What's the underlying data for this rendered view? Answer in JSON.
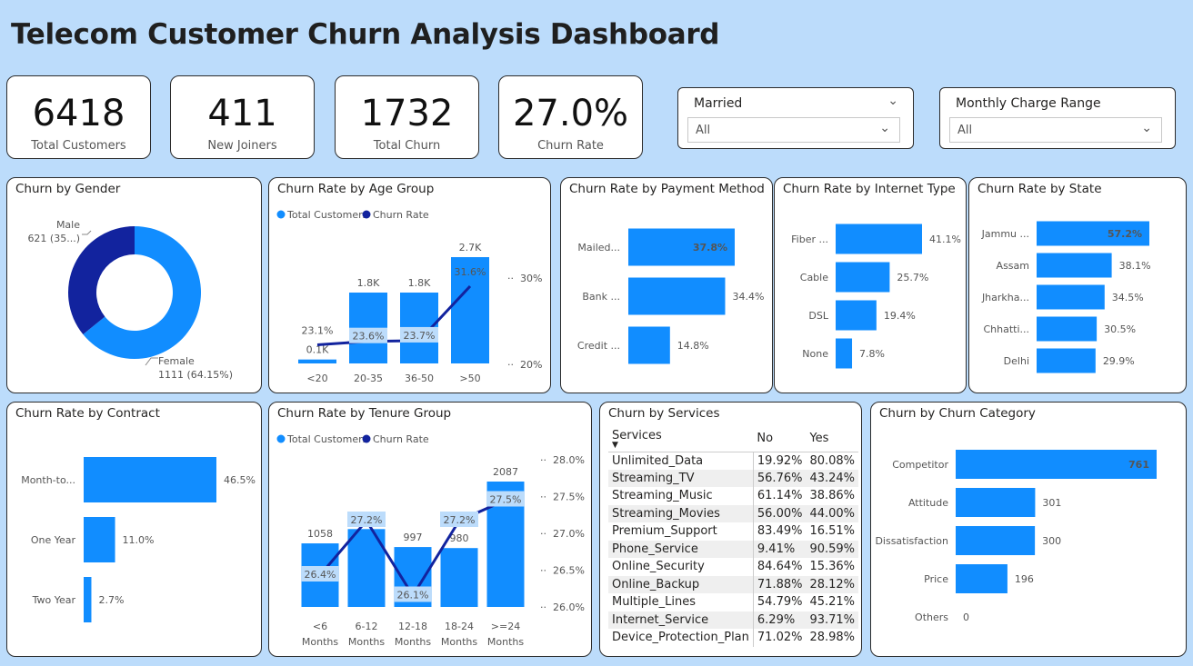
{
  "title": "Telecom Customer Churn Analysis Dashboard",
  "kpis": [
    {
      "value": "6418",
      "label": "Total Customers"
    },
    {
      "value": "411",
      "label": "New Joiners"
    },
    {
      "value": "1732",
      "label": "Total Churn"
    },
    {
      "value": "27.0%",
      "label": "Churn Rate"
    }
  ],
  "slicers": [
    {
      "title": "Married",
      "value": "All"
    },
    {
      "title": "Monthly Charge Range",
      "value": "All"
    }
  ],
  "panels": {
    "gender": "Churn by Gender",
    "age": "Churn Rate by Age Group",
    "payment": "Churn Rate by Payment Method",
    "internet": "Churn Rate by Internet Type",
    "state": "Churn Rate by State",
    "contract": "Churn Rate by Contract",
    "tenure": "Churn Rate by Tenure Group",
    "services": "Churn by Services",
    "category": "Churn by Churn Category"
  },
  "legend": {
    "total": "Total Customers",
    "rate": "Churn Rate"
  },
  "services_table": {
    "headers": [
      "Services",
      "No",
      "Yes"
    ],
    "rows": [
      [
        "Unlimited_Data",
        "19.92%",
        "80.08%"
      ],
      [
        "Streaming_TV",
        "56.76%",
        "43.24%"
      ],
      [
        "Streaming_Music",
        "61.14%",
        "38.86%"
      ],
      [
        "Streaming_Movies",
        "56.00%",
        "44.00%"
      ],
      [
        "Premium_Support",
        "83.49%",
        "16.51%"
      ],
      [
        "Phone_Service",
        "9.41%",
        "90.59%"
      ],
      [
        "Online_Security",
        "84.64%",
        "15.36%"
      ],
      [
        "Online_Backup",
        "71.88%",
        "28.12%"
      ],
      [
        "Multiple_Lines",
        "54.79%",
        "45.21%"
      ],
      [
        "Internet_Service",
        "6.29%",
        "93.71%"
      ],
      [
        "Device_Protection_Plan",
        "71.02%",
        "28.98%"
      ]
    ]
  },
  "colors": {
    "primary": "#118dff",
    "dark": "#12239e",
    "highlight": "#bcdcfb"
  },
  "chart_data": [
    {
      "id": "gender",
      "type": "pie",
      "categories": [
        "Female",
        "Male"
      ],
      "values": [
        1111,
        621
      ],
      "labels": [
        "Female\n1111 (64.15%)",
        "Male\n621 (35...)"
      ]
    },
    {
      "id": "age",
      "type": "bar",
      "categories": [
        "<20",
        "20-35",
        "36-50",
        ">50"
      ],
      "series": [
        {
          "name": "Total Customers",
          "values": [
            0.1,
            1.8,
            1.8,
            2.7
          ],
          "labels": [
            "0.1K",
            "1.8K",
            "1.8K",
            "2.7K"
          ]
        },
        {
          "name": "Churn Rate",
          "values": [
            23.1,
            23.6,
            23.7,
            31.6
          ],
          "labels": [
            "23.1%",
            "23.6%",
            "23.7%",
            "31.6%"
          ]
        }
      ],
      "y2_ticks": [
        "30%",
        "20%"
      ]
    },
    {
      "id": "payment",
      "type": "bar",
      "categories": [
        "Mailed...",
        "Bank ...",
        "Credit ..."
      ],
      "values": [
        37.8,
        34.4,
        14.8
      ],
      "labels": [
        "37.8%",
        "34.4%",
        "14.8%"
      ]
    },
    {
      "id": "internet",
      "type": "bar",
      "categories": [
        "Fiber ...",
        "Cable",
        "DSL",
        "None"
      ],
      "values": [
        41.1,
        25.7,
        19.4,
        7.8
      ],
      "labels": [
        "41.1%",
        "25.7%",
        "19.4%",
        "7.8%"
      ]
    },
    {
      "id": "state",
      "type": "bar",
      "categories": [
        "Jammu ...",
        "Assam",
        "Jharkha...",
        "Chhatti...",
        "Delhi"
      ],
      "values": [
        57.2,
        38.1,
        34.5,
        30.5,
        29.9
      ],
      "labels": [
        "57.2%",
        "38.1%",
        "34.5%",
        "30.5%",
        "29.9%"
      ]
    },
    {
      "id": "contract",
      "type": "bar",
      "categories": [
        "Month-to...",
        "One Year",
        "Two Year"
      ],
      "values": [
        46.5,
        11.0,
        2.7
      ],
      "labels": [
        "46.5%",
        "11.0%",
        "2.7%"
      ]
    },
    {
      "id": "tenure",
      "type": "bar",
      "categories": [
        "<6 Months",
        "6-12 Months",
        "12-18 Months",
        "18-24 Months",
        ">=24 Months"
      ],
      "cat_lines": [
        [
          "<6",
          "Months"
        ],
        [
          "6-12",
          "Months"
        ],
        [
          "12-18",
          "Months"
        ],
        [
          "18-24",
          "Months"
        ],
        [
          ">=24",
          "Months"
        ]
      ],
      "series": [
        {
          "name": "Total Customers",
          "values": [
            1058,
            1296,
            997,
            980,
            2087
          ],
          "labels": [
            "1058",
            "1296",
            "997",
            "980",
            "2087"
          ]
        },
        {
          "name": "Churn Rate",
          "values": [
            26.4,
            27.2,
            26.1,
            27.2,
            27.5
          ],
          "labels": [
            "26.4%",
            "27.2%",
            "26.1%",
            "27.2%",
            "27.5%"
          ]
        }
      ],
      "y2_ticks": [
        "28.0%",
        "27.5%",
        "27.0%",
        "26.5%",
        "26.0%"
      ]
    },
    {
      "id": "category",
      "type": "bar",
      "categories": [
        "Competitor",
        "Attitude",
        "Dissatisfaction",
        "Price",
        "Others"
      ],
      "values": [
        761,
        301,
        300,
        196,
        0
      ],
      "labels": [
        "761",
        "301",
        "300",
        "196",
        "0"
      ]
    }
  ]
}
